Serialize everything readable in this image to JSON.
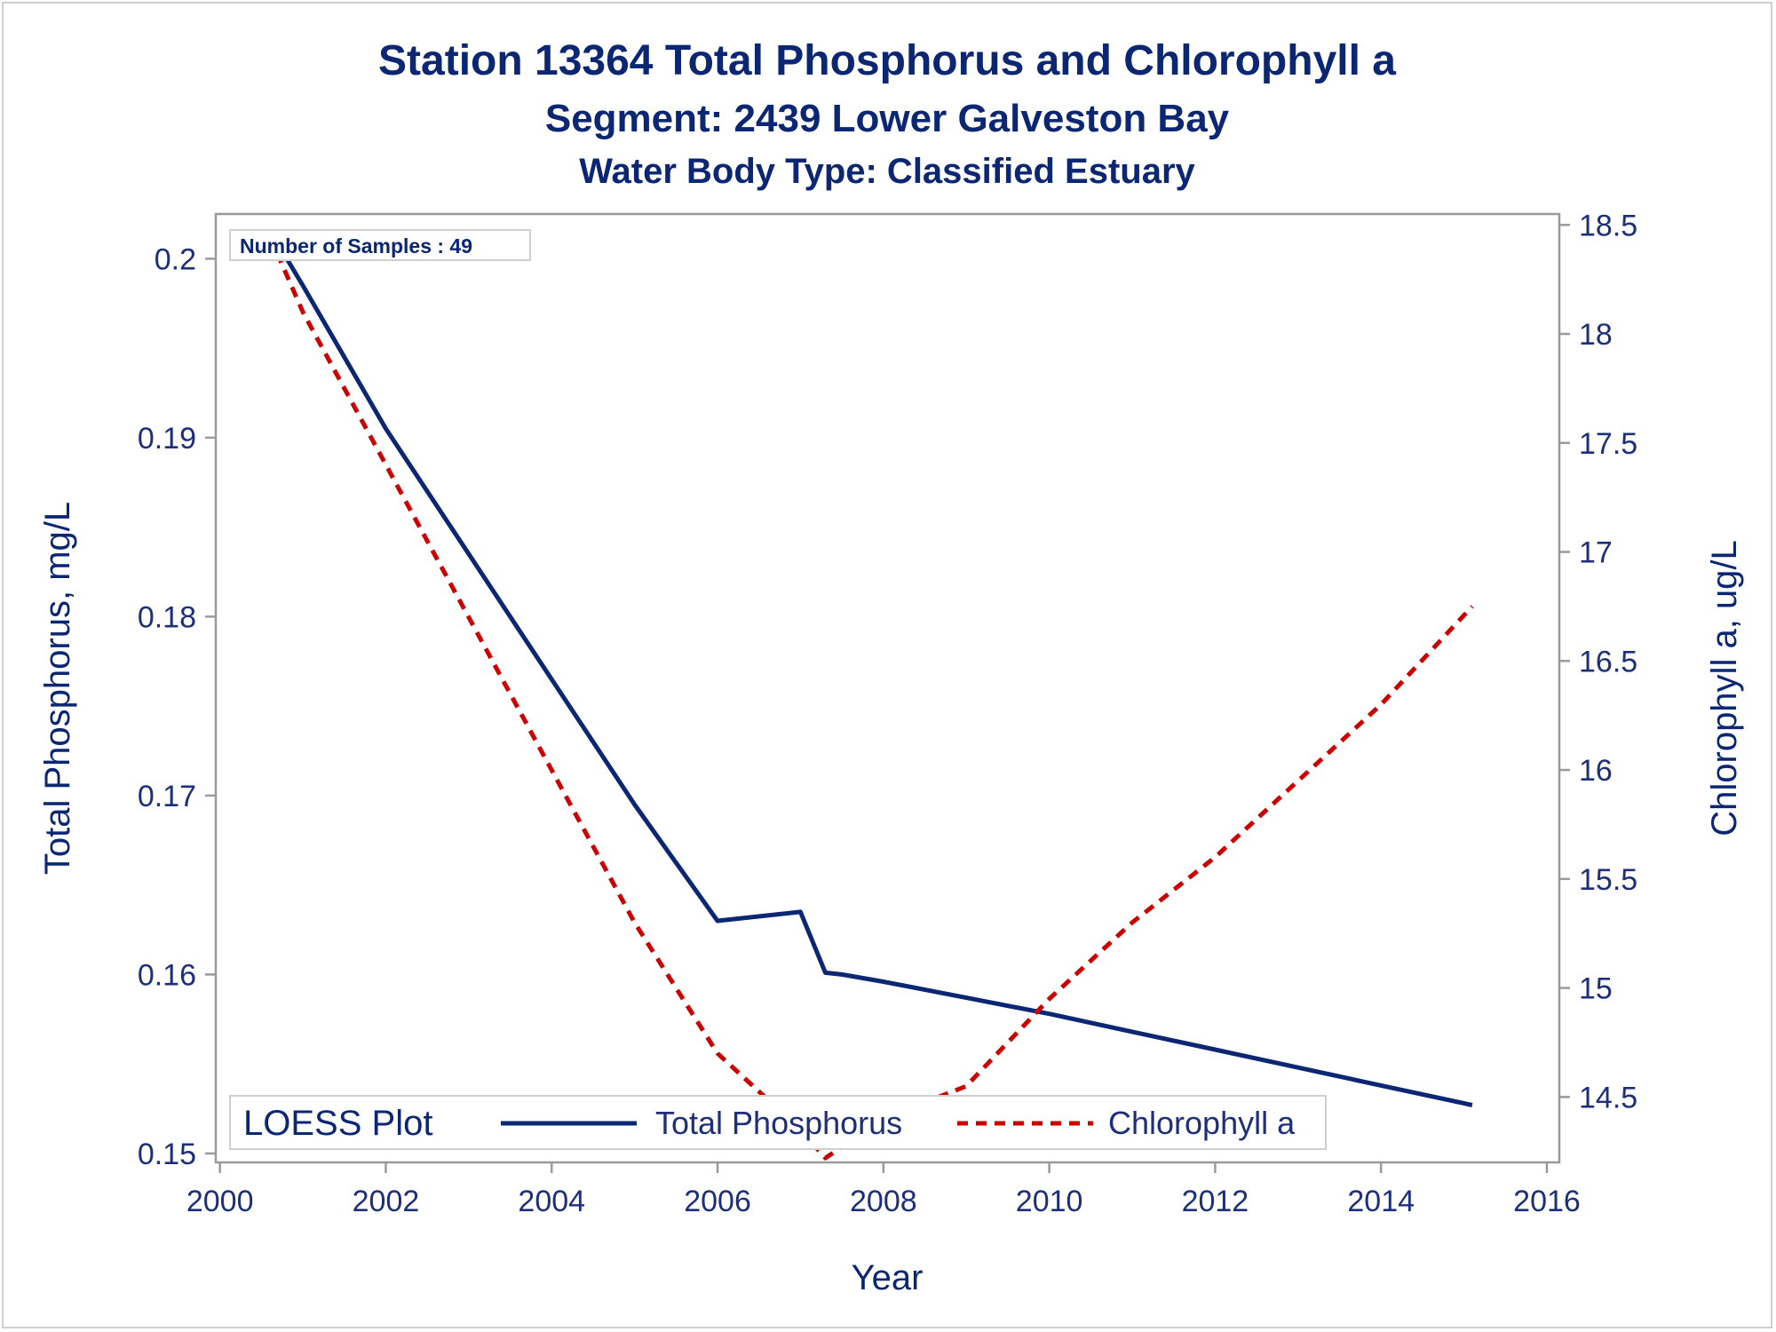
{
  "chart_data": {
    "type": "line",
    "titles": [
      "Station 13364   Total Phosphorus and Chlorophyll a",
      "Segment: 2439  Lower Galveston Bay",
      "Water Body Type: Classified Estuary"
    ],
    "xlabel": "Year",
    "ylabel_left": "Total Phosphorus, mg/L",
    "ylabel_right": "Chlorophyll a, ug/L",
    "x_ticks": [
      "2000",
      "2002",
      "2004",
      "2006",
      "2008",
      "2010",
      "2012",
      "2014",
      "2016"
    ],
    "x_tick_values": [
      2000,
      2002,
      2004,
      2006,
      2008,
      2010,
      2012,
      2014,
      2016
    ],
    "y_left_ticks": [
      "0.15",
      "0.16",
      "0.17",
      "0.18",
      "0.19",
      "0.2"
    ],
    "y_left_tick_values": [
      0.15,
      0.16,
      0.17,
      0.18,
      0.19,
      0.2
    ],
    "y_right_ticks": [
      "14.5",
      "15",
      "15.5",
      "16",
      "16.5",
      "17",
      "17.5",
      "18",
      "18.5"
    ],
    "y_right_tick_values": [
      14.5,
      15,
      15.5,
      16,
      16.5,
      17,
      17.5,
      18,
      18.5
    ],
    "xlim": [
      1999.95,
      2016.15
    ],
    "ylim_left": [
      0.1495,
      0.2025
    ],
    "ylim_right": [
      14.2,
      18.55
    ],
    "sample_note": "Number of Samples : 49",
    "legend": {
      "title": "LOESS Plot",
      "position": "bottom-left inside",
      "items": [
        "Total Phosphorus",
        "Chlorophyll a"
      ]
    },
    "series": [
      {
        "name": "Total Phosphorus",
        "axis": "left",
        "color": "#0b2673",
        "style": "solid",
        "x": [
          2000.6,
          2001.0,
          2002.0,
          2003.0,
          2004.0,
          2005.0,
          2006.0,
          2007.0,
          2007.3,
          2007.5,
          2008.0,
          2009.0,
          2010.0,
          2011.0,
          2012.0,
          2013.0,
          2014.0,
          2015.1
        ],
        "values": [
          0.2016,
          0.1985,
          0.1905,
          0.1835,
          0.1765,
          0.1695,
          0.163,
          0.1635,
          0.1601,
          0.16,
          0.1596,
          0.1587,
          0.1578,
          0.1568,
          0.1558,
          0.1548,
          0.1538,
          0.1527
        ]
      },
      {
        "name": "Chlorophyll a",
        "axis": "right",
        "color": "#cc0000",
        "style": "dashed",
        "x": [
          2000.6,
          2001.0,
          2002.0,
          2003.0,
          2004.0,
          2005.0,
          2006.0,
          2007.0,
          2007.3,
          2008.0,
          2009.0,
          2010.0,
          2011.0,
          2012.0,
          2013.0,
          2014.0,
          2015.1
        ],
        "values": [
          18.45,
          18.1,
          17.4,
          16.7,
          16.0,
          15.3,
          14.7,
          14.35,
          14.22,
          14.4,
          14.55,
          14.95,
          15.3,
          15.6,
          15.95,
          16.3,
          16.75
        ]
      }
    ]
  },
  "colors": {
    "text": "#0b2673",
    "axis": "#9a9a9a",
    "tp": "#0b2673",
    "chl": "#cc0000"
  }
}
